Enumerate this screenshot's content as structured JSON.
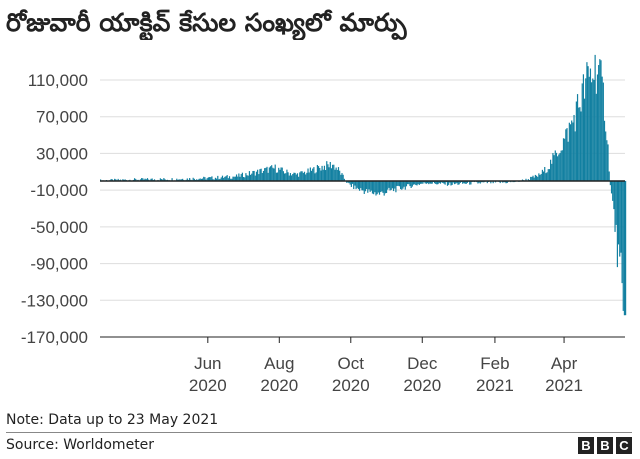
{
  "title": "రోజువారీ యాక్టివ్ కేసుల సంఖ్యలో మార్పు",
  "note": "Note: Data up to 23 May 2021",
  "source": "Source: Worldometer",
  "brand": [
    "B",
    "B",
    "C"
  ],
  "chart_data": {
    "type": "bar",
    "title": "రోజువారీ యాక్టివ్ కేసుల సంఖ్యలో మార్పు",
    "xlabel": "",
    "ylabel": "",
    "ylim": [
      -170000,
      130000
    ],
    "y_ticks": [
      110000,
      70000,
      30000,
      -10000,
      -50000,
      -90000,
      -130000,
      -170000
    ],
    "y_tick_labels": [
      "110,000",
      "70,000",
      "30,000",
      "-10,000",
      "-50,000",
      "-90,000",
      "-130,000",
      "-170,000"
    ],
    "x_ticks": [
      {
        "date": "2020-06-01",
        "label": [
          "Jun",
          "2020"
        ]
      },
      {
        "date": "2020-08-01",
        "label": [
          "Aug",
          "2020"
        ]
      },
      {
        "date": "2020-10-01",
        "label": [
          "Oct",
          "2020"
        ]
      },
      {
        "date": "2020-12-01",
        "label": [
          "Dec",
          "2020"
        ]
      },
      {
        "date": "2021-02-01",
        "label": [
          "Feb",
          "2021"
        ]
      },
      {
        "date": "2021-04-01",
        "label": [
          "Apr",
          "2021"
        ]
      }
    ],
    "x_range": [
      "2020-03-01",
      "2021-05-23"
    ],
    "grid": "horizontal",
    "legend": "none",
    "bar_color": "#1380a1",
    "series_points": [
      [
        "2020-03-01",
        500
      ],
      [
        "2020-04-01",
        1500
      ],
      [
        "2020-05-01",
        2000
      ],
      [
        "2020-06-01",
        3000
      ],
      [
        "2020-06-25",
        5000
      ],
      [
        "2020-07-10",
        9000
      ],
      [
        "2020-07-20",
        12000
      ],
      [
        "2020-07-28",
        14000
      ],
      [
        "2020-08-05",
        10000
      ],
      [
        "2020-08-15",
        7000
      ],
      [
        "2020-08-25",
        10000
      ],
      [
        "2020-09-05",
        15000
      ],
      [
        "2020-09-15",
        18000
      ],
      [
        "2020-09-20",
        12000
      ],
      [
        "2020-09-28",
        -3000
      ],
      [
        "2020-10-05",
        -8000
      ],
      [
        "2020-10-15",
        -12000
      ],
      [
        "2020-10-25",
        -14000
      ],
      [
        "2020-11-05",
        -10000
      ],
      [
        "2020-11-15",
        -7000
      ],
      [
        "2020-11-25",
        -4000
      ],
      [
        "2020-12-05",
        -2000
      ],
      [
        "2020-12-15",
        -3000
      ],
      [
        "2020-12-25",
        -3500
      ],
      [
        "2021-01-10",
        -2500
      ],
      [
        "2021-01-25",
        -2000
      ],
      [
        "2021-02-10",
        -1500
      ],
      [
        "2021-02-20",
        -500
      ],
      [
        "2021-03-01",
        2000
      ],
      [
        "2021-03-10",
        6000
      ],
      [
        "2021-03-18",
        15000
      ],
      [
        "2021-03-25",
        30000
      ],
      [
        "2021-04-01",
        45000
      ],
      [
        "2021-04-08",
        65000
      ],
      [
        "2021-04-15",
        90000
      ],
      [
        "2021-04-20",
        108000
      ],
      [
        "2021-04-25",
        118000
      ],
      [
        "2021-04-29",
        127000
      ],
      [
        "2021-05-02",
        105000
      ],
      [
        "2021-05-05",
        85000
      ],
      [
        "2021-05-08",
        35000
      ],
      [
        "2021-05-10",
        -5000
      ],
      [
        "2021-05-13",
        -35000
      ],
      [
        "2021-05-16",
        -75000
      ],
      [
        "2021-05-19",
        -105000
      ],
      [
        "2021-05-21",
        -163000
      ],
      [
        "2021-05-23",
        -120000
      ]
    ]
  }
}
